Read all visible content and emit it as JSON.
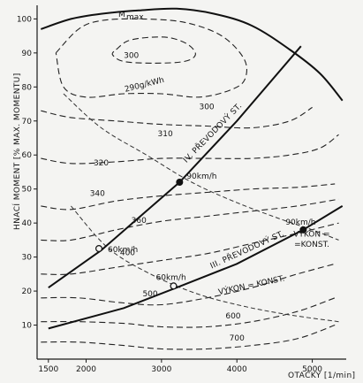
{
  "chart_data": {
    "type": "line",
    "title": "",
    "xlabel": "OTAČKY [1/min]",
    "ylabel": "HNACÍ MOMENT [% MAX. MOMENTU]",
    "xlim": [
      1350,
      5450
    ],
    "ylim": [
      0,
      104
    ],
    "x_ticks": [
      1500,
      2000,
      3000,
      4000,
      5000
    ],
    "y_ticks": [
      10,
      20,
      30,
      40,
      50,
      60,
      70,
      80,
      90,
      100
    ],
    "grid": false,
    "mmax_curve": {
      "name": "Mmax",
      "x": [
        1400,
        1800,
        2200,
        2700,
        3200,
        3700,
        4200,
        4700,
        5100,
        5400
      ],
      "y": [
        97,
        100,
        101.5,
        102.5,
        103,
        101.5,
        98,
        91,
        84,
        76
      ]
    },
    "bsfc_contours": [
      {
        "label": "290g/kWh",
        "x": [
          2400,
          2550,
          2800,
          3100,
          3350,
          3450,
          3300,
          2900,
          2500,
          2350,
          2400
        ],
        "y": [
          91,
          93.5,
          94.5,
          94.5,
          92.5,
          89.5,
          87.5,
          87,
          87.5,
          89.5,
          91
        ]
      },
      {
        "label": "300",
        "x": [
          1600,
          1900,
          2200,
          2700,
          3300,
          3800,
          4100,
          4100,
          3900,
          3500,
          3000,
          2500,
          2000,
          1700,
          1600
        ],
        "y": [
          90,
          97,
          99.5,
          100,
          99,
          95,
          88,
          82,
          79,
          77,
          78,
          78,
          77,
          80,
          90
        ]
      },
      {
        "label": "310",
        "x": [
          1400,
          1800,
          2400,
          3000,
          3600,
          4200,
          4700,
          5000
        ],
        "y": [
          73,
          71,
          70,
          69,
          68.5,
          68,
          70,
          74
        ]
      },
      {
        "label": "320",
        "x": [
          1400,
          1800,
          2400,
          3000,
          3600,
          4200,
          4700,
          5100,
          5350
        ],
        "y": [
          59,
          57.5,
          58,
          59,
          59,
          59,
          60,
          62,
          66
        ]
      },
      {
        "label": "340",
        "x": [
          1400,
          1800,
          2400,
          3000,
          3600,
          4200,
          4800,
          5300
        ],
        "y": [
          45,
          44,
          46.5,
          48,
          49,
          50,
          50.5,
          51.5
        ]
      },
      {
        "label": "360",
        "x": [
          1400,
          1800,
          2400,
          3000,
          3600,
          4200,
          4800,
          5350
        ],
        "y": [
          35,
          35,
          38,
          40.5,
          42,
          43.5,
          45,
          47
        ]
      },
      {
        "label": "400",
        "x": [
          1400,
          1800,
          2400,
          3000,
          3600,
          4200,
          4800,
          5350
        ],
        "y": [
          25,
          25,
          27,
          29,
          31,
          34,
          37,
          40
        ]
      },
      {
        "label": "500",
        "x": [
          1400,
          1900,
          2500,
          3000,
          3600,
          4200,
          4800,
          5300
        ],
        "y": [
          18,
          18,
          16.5,
          16,
          18,
          21,
          25,
          28
        ]
      },
      {
        "label": "600",
        "x": [
          1400,
          1900,
          2500,
          3000,
          3600,
          4200,
          4800,
          5300
        ],
        "y": [
          11,
          11,
          10.5,
          9.5,
          9.5,
          11,
          14,
          18
        ]
      },
      {
        "label": "700",
        "x": [
          1400,
          1900,
          2500,
          3000,
          3600,
          4200,
          4800,
          5300
        ],
        "y": [
          5,
          5,
          4,
          3,
          3,
          4,
          6,
          10
        ]
      }
    ],
    "constant_power_curves": [
      {
        "label": "VÝKON = KONST.",
        "x": [
          1700,
          2200,
          2800,
          3400,
          4000,
          4600,
          5000,
          5350
        ],
        "y": [
          78,
          68,
          60,
          52,
          46,
          41,
          38,
          35
        ]
      },
      {
        "label": "VÝKON = KONST.",
        "x": [
          1800,
          2300,
          2900,
          3500,
          4100,
          4700,
          5350
        ],
        "y": [
          45,
          32.5,
          24.5,
          19,
          15.5,
          13,
          11
        ]
      }
    ],
    "gear_lines": [
      {
        "label": "IV. PŘEVODOVÝ ST.",
        "x": [
          1500,
          2200,
          3240,
          4000,
          4850
        ],
        "y": [
          21,
          32,
          52,
          70,
          92
        ]
      },
      {
        "label": "III. PŘEVODOVÝ ST.",
        "x": [
          1500,
          2500,
          3200,
          4000,
          4880,
          5400
        ],
        "y": [
          9,
          15,
          21,
          28,
          38,
          45
        ]
      }
    ],
    "operating_points": [
      {
        "label": "60km/h",
        "x": 2170,
        "y": 32.5,
        "filled": false
      },
      {
        "label": "90km/h",
        "x": 3240,
        "y": 52,
        "filled": true
      },
      {
        "label": "60km/h",
        "x": 3160,
        "y": 21.5,
        "filled": false
      },
      {
        "label": "90km/h",
        "x": 4880,
        "y": 38,
        "filled": true
      }
    ]
  }
}
